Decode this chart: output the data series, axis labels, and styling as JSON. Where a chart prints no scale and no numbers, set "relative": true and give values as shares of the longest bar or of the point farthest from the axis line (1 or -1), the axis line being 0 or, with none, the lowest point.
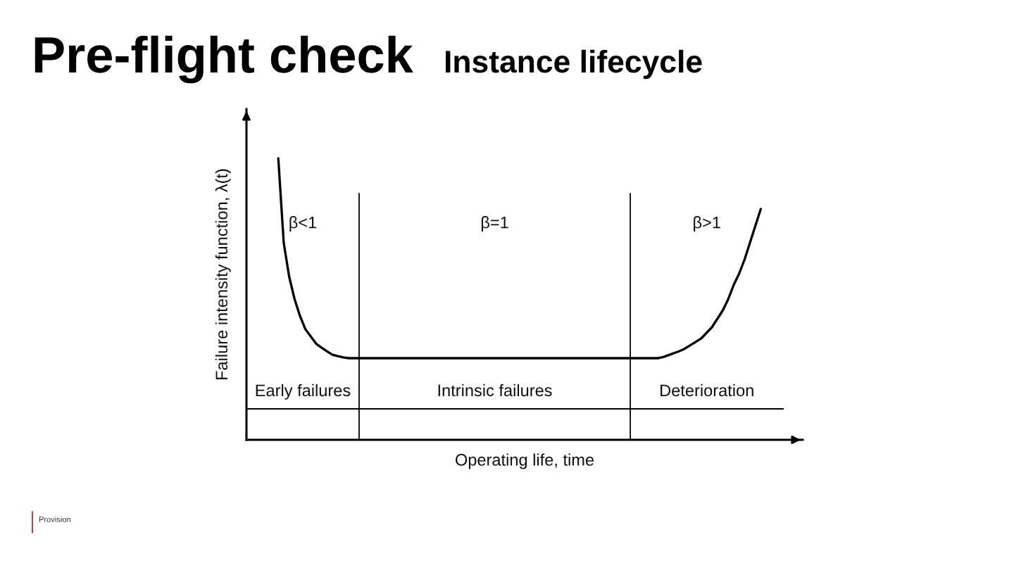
{
  "chart_data": {
    "type": "line",
    "title": "Pre-flight check",
    "subtitle": "Instance lifecycle",
    "xlabel": "Operating life, time",
    "ylabel": "Failure intensity function, λ(t)",
    "relative": true,
    "line_style": "solid",
    "categories": [
      null,
      null,
      null,
      null,
      null,
      null,
      null,
      null,
      null,
      null,
      null,
      null,
      null,
      null,
      null,
      null,
      null,
      null,
      null,
      null,
      null,
      null,
      null,
      null,
      null,
      null,
      null,
      null,
      null,
      null,
      null,
      null,
      null,
      null,
      null,
      null,
      null,
      null,
      null,
      null,
      null,
      null,
      null,
      null,
      null,
      null,
      null,
      null,
      null,
      null,
      null,
      null,
      null,
      null,
      null,
      null,
      null,
      null,
      null,
      null,
      null,
      null,
      null,
      null,
      null,
      null,
      null,
      null,
      null,
      null,
      null,
      null,
      null,
      null,
      null,
      null,
      null,
      null,
      null,
      null,
      null,
      null,
      null,
      null,
      null,
      null,
      null,
      null,
      null,
      null
    ],
    "series": [
      {
        "color": "#000000",
        "values": [
          1.0,
          0.7,
          0.58,
          0.5,
          0.44,
          0.393,
          0.367,
          0.341,
          0.327,
          0.314,
          0.302,
          0.297,
          0.293,
          0.29,
          0.29,
          0.29,
          0.29,
          0.29,
          0.29,
          0.29,
          0.29,
          0.29,
          0.29,
          0.29,
          0.29,
          0.29,
          0.29,
          0.29,
          0.29,
          0.29,
          0.29,
          0.29,
          0.29,
          0.29,
          0.29,
          0.29,
          0.29,
          0.29,
          0.29,
          0.29,
          0.29,
          0.29,
          0.29,
          0.29,
          0.29,
          0.29,
          0.29,
          0.29,
          0.29,
          0.29,
          0.29,
          0.29,
          0.29,
          0.29,
          0.29,
          0.29,
          0.29,
          0.29,
          0.29,
          0.29,
          0.29,
          0.29,
          0.29,
          0.29,
          0.29,
          0.29,
          0.29,
          0.29,
          0.29,
          0.29,
          0.29,
          0.294,
          0.301,
          0.308,
          0.315,
          0.324,
          0.336,
          0.348,
          0.36,
          0.38,
          0.4,
          0.43,
          0.46,
          0.5,
          0.55,
          0.59,
          0.64,
          0.7,
          0.76,
          0.82
        ]
      }
    ],
    "ref_lines": [
      {
        "axis": "y",
        "value": 0.11,
        "color": "#000000"
      }
    ],
    "annotations": [
      "β<1",
      "β=1",
      "β>1",
      "Early failures",
      "Intrinsic failures",
      "Deterioration",
      "Provision"
    ]
  }
}
